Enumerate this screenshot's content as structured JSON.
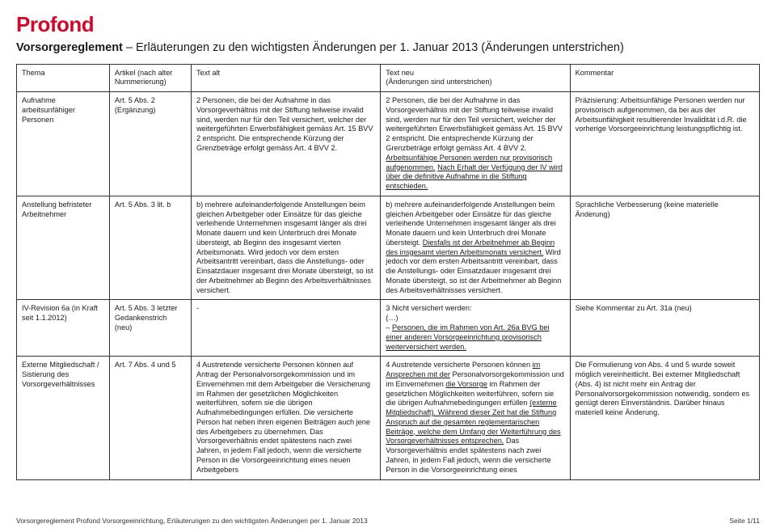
{
  "brand": "Profond",
  "subtitle_bold": "Vorsorgereglement",
  "subtitle_rest": " – Erläuterungen zu den wichtigsten Änderungen per 1. Januar 2013 (Änderungen unterstrichen)",
  "colors": {
    "brand": "#cf0a2c",
    "text": "#1a1a1a",
    "border": "#333333",
    "bg": "#ffffff"
  },
  "fonts": {
    "brand_size": 26,
    "subtitle_size": 14.5,
    "cell_size": 9.2,
    "footer_size": 8.5
  },
  "columns": [
    {
      "header": "Thema"
    },
    {
      "header_l1": "Artikel (nach alter",
      "header_l2": "Nummerierung)"
    },
    {
      "header": "Text alt"
    },
    {
      "header_l1": "Text neu",
      "header_l2": "(Änderungen sind unterstrichen)"
    },
    {
      "header": "Kommentar"
    }
  ],
  "column_widths_pct": [
    12.5,
    11,
    25.5,
    25.5,
    25.5
  ],
  "rows": [
    {
      "thema": "Aufnahme arbeitsunfähiger Personen",
      "artikel": "Art. 5 Abs. 2 (Ergänzung)",
      "alt": "2 Personen, die bei der Aufnahme in das Vorsorgeverhältnis mit der Stiftung teilweise invalid sind, werden nur für den Teil versichert, welcher der weitergeführten Erwerbsfähigkeit gemäss Art. 15 BVV 2 entspricht. Die entsprechende Kürzung der Grenzbeträge erfolgt gemäss Art. 4 BVV 2.",
      "neu_pre": "2 Personen, die bei der Aufnahme in das Vorsorgeverhältnis mit der Stiftung teilweise invalid sind, werden nur für den Teil versichert, welcher der weitergeführten Erwerbsfähigkeit gemäss Art. 15 BVV 2 entspricht. Die entsprechende Kürzung der Grenzbeträge erfolgt gemäss Art. 4 BVV 2. ",
      "neu_u1": "Arbeitsunfähige Personen werden nur provisorisch aufgenommen.",
      "neu_mid": " ",
      "neu_u2": "Nach Erhalt der Verfügung der IV wird über die definitive Aufnahme in die Stiftung entschieden.",
      "kommentar": "Präzisierung: Arbeitsunfähige Personen werden nur provisorisch aufgenommen, da bei aus der Arbeitsunfähigkeit resultierender Invalidität i.d.R. die vorherige Vorsorgeeinrichtung leistungspflichtig ist."
    },
    {
      "thema": "Anstellung befristeter Arbeitnehmer",
      "artikel": "Art. 5 Abs. 3 lit. b",
      "alt": "b) mehrere aufeinanderfolgende Anstellungen beim gleichen Arbeitgeber oder Einsätze für das gleiche verleihende Unternehmen insgesamt länger als drei Monate dauern und kein Unterbruch drei Monate übersteigt, ab Beginn des insgesamt vierten Arbeitsmonats. Wird jedoch vor dem ersten Arbeitsantritt vereinbart, dass die Anstellungs- oder Einsatzdauer insgesamt drei Monate übersteigt, so ist der Arbeitnehmer ab Beginn des Arbeitsverhältnisses versichert.",
      "neu_pre": "b) mehrere aufeinanderfolgende Anstellungen beim gleichen Arbeitgeber oder Einsätze für das gleiche verleihende Unternehmen insgesamt länger als drei Monate dauern und kein Unterbruch drei Monate übersteigt. ",
      "neu_u1": "Diesfalls ist der Arbeitnehmer ab Beginn des insgesamt vierten Arbeitsmonats versichert.",
      "neu_mid": " Wird jedoch vor dem ersten Arbeitsantritt vereinbart, dass die Anstellungs- oder Einsatzdauer insgesamt drei Monate übersteigt, so ist der Arbeitnehmer ab Beginn des Arbeitsverhältnisses versichert.",
      "neu_u2": "",
      "kommentar": "Sprachliche Verbesserung (keine materielle Änderung)"
    },
    {
      "thema": "IV-Revision 6a (in Kraft seit 1.1.2012)",
      "artikel": "Art. 5 Abs. 3 letzter Gedankenstrich (neu)",
      "alt": "-",
      "neu_pre": "3 Nicht versichert werden:\n(…)\n– ",
      "neu_u1": "Personen, die im Rahmen von Art. 26a BVG bei einer anderen Vorsorgeeinrichtung provisorisch weiterversichert werden.",
      "neu_mid": "",
      "neu_u2": "",
      "kommentar": "Siehe Kommentar zu Art. 31a (neu)"
    },
    {
      "thema": "Externe Mitgliedschaft / Sistierung des Vorsorgeverhältnisses",
      "artikel": "Art. 7 Abs. 4 und 5",
      "alt": "4 Austretende versicherte Personen können auf Antrag der Personalvorsorgekommission und im Einvernehmen mit dem Arbeitgeber die Versicherung im Rahmen der gesetzlichen Möglichkeiten weiterführen, sofern sie die übrigen Aufnahmebedingungen erfüllen. Die versicherte Person hat neben ihren eigenen Beiträgen auch jene des Arbeitgebers zu übernehmen. Das Vorsorgeverhältnis endet spätestens nach zwei Jahren, in jedem Fall jedoch, wenn die versicherte Person in die Vorsorgeeinrichtung eines neuen Arbeitgebers",
      "neu_pre": "4 Austretende versicherte Personen können ",
      "neu_u1": "im Ansprechen mit der",
      "neu_mid": " Personalvorsorgekommission und im Einvernehmen ",
      "neu_u2": "die Vorsorge",
      "neu_post": " im Rahmen der gesetzlichen Möglichkeiten weiterführen, sofern sie die übrigen Aufnahmebedingungen erfüllen ",
      "neu_u3": "(externe Mitgliedschaft). Während dieser Zeit hat die Stiftung Anspruch auf die gesamten reglementarischen Beiträge, welche dem Umfang der Weiterführung des Vorsorgeverhältnisses entsprechen.",
      "neu_tail": " Das Vorsorgeverhältnis endet spätestens nach zwei Jahren, in jedem Fall jedoch, wenn die versicherte Person in die Vorsorgeeinrichtung eines",
      "kommentar": "Die Formulierung von Abs. 4 und 5 wurde soweit möglich vereinheitlicht. Bei externer Mitgliedschaft (Abs. 4) ist nicht mehr ein Antrag der Personalvorsorgekommission notwendig, sondern es genügt deren Einverständnis. Darüber hinaus materiell keine Änderung."
    }
  ],
  "footer_left": "Vorsorgereglement Profond Vorsorgeeinrichtung, Erläuterungen zu den wichtigsten Änderungen per 1. Januar 2013",
  "footer_right": "Seite 1/11"
}
